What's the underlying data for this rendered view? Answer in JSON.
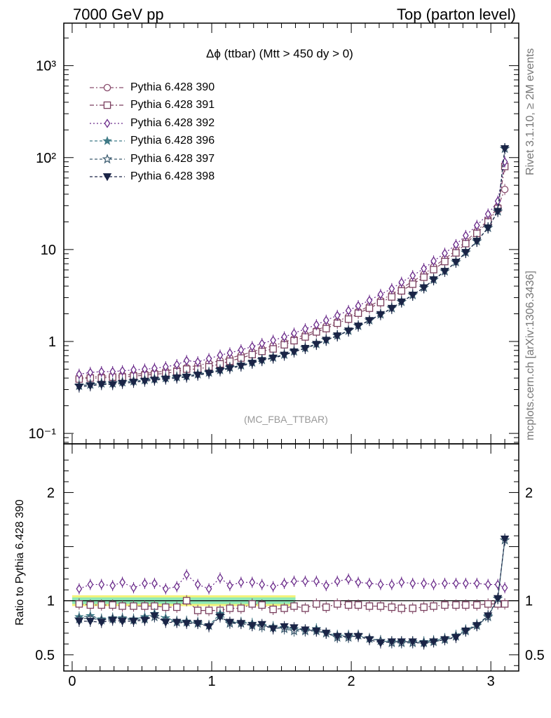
{
  "header": {
    "left": "7000 GeV pp",
    "right": "Top (parton level)"
  },
  "side_labels": {
    "rivet": "Rivet 3.1.10, ≥ 2M events",
    "mcplots": "mcplots.cern.ch [arXiv:1306.3436]"
  },
  "plot_title": "Δϕ (ttbar) (Mtt > 450 dy > 0)",
  "analysis_tag": "(MC_FBA_TTBAR)",
  "ratio_ylabel": "Ratio to Pythia 6.428 390",
  "colors": {
    "s390": "#8a4e6e",
    "s391": "#7a3f5e",
    "s392": "#6a2a8a",
    "s396": "#3f7a86",
    "s397": "#3a5a6e",
    "s398": "#1a2446",
    "band_outer": "#f2f27a",
    "band_inner": "#8ee8b8"
  },
  "chart_data": [
    {
      "type": "line",
      "panel": "main",
      "yscale": "log",
      "xlim": [
        -0.06,
        3.2
      ],
      "ylim": [
        0.077,
        2900
      ],
      "y_tick_labels": [
        "10⁻¹",
        "1",
        "10",
        "10²",
        "10³"
      ],
      "y_tick_values": [
        0.1,
        1,
        10,
        100,
        1000
      ],
      "x": [
        0.05,
        0.13,
        0.21,
        0.29,
        0.36,
        0.44,
        0.52,
        0.59,
        0.67,
        0.75,
        0.82,
        0.9,
        0.98,
        1.06,
        1.13,
        1.21,
        1.29,
        1.36,
        1.44,
        1.52,
        1.59,
        1.67,
        1.75,
        1.82,
        1.9,
        1.98,
        2.05,
        2.13,
        2.21,
        2.29,
        2.36,
        2.44,
        2.52,
        2.59,
        2.67,
        2.75,
        2.82,
        2.9,
        2.98,
        3.05,
        3.1
      ],
      "series": [
        {
          "name": "Pythia 6.428 390",
          "marker": "circle",
          "dash": "6,3,2,3",
          "values": [
            0.4,
            0.41,
            0.42,
            0.42,
            0.43,
            0.44,
            0.45,
            0.46,
            0.48,
            0.5,
            0.52,
            0.55,
            0.58,
            0.62,
            0.66,
            0.71,
            0.77,
            0.83,
            0.9,
            0.98,
            1.07,
            1.19,
            1.32,
            1.47,
            1.65,
            1.87,
            2.12,
            2.43,
            2.8,
            3.25,
            3.8,
            4.5,
            5.35,
            6.5,
            7.9,
            9.8,
            12.3,
            15.8,
            21,
            29,
            45
          ]
        },
        {
          "name": "Pythia 6.428 391",
          "marker": "square",
          "dash": "6,3,2,3",
          "values": [
            0.39,
            0.4,
            0.4,
            0.41,
            0.41,
            0.42,
            0.43,
            0.44,
            0.45,
            0.47,
            0.5,
            0.5,
            0.53,
            0.57,
            0.61,
            0.66,
            0.72,
            0.78,
            0.83,
            0.92,
            1.02,
            1.12,
            1.27,
            1.38,
            1.58,
            1.75,
            2.03,
            2.3,
            2.65,
            3.05,
            3.55,
            4.2,
            5.0,
            6.05,
            7.4,
            9.2,
            11.6,
            15.0,
            20.0,
            28.0,
            80
          ]
        },
        {
          "name": "Pythia 6.428 392",
          "marker": "diamond",
          "dash": "2,3",
          "values": [
            0.44,
            0.46,
            0.47,
            0.47,
            0.48,
            0.49,
            0.5,
            0.51,
            0.53,
            0.56,
            0.62,
            0.6,
            0.65,
            0.71,
            0.75,
            0.81,
            0.88,
            0.95,
            1.03,
            1.12,
            1.23,
            1.37,
            1.52,
            1.7,
            1.92,
            2.17,
            2.45,
            2.8,
            3.25,
            3.75,
            4.4,
            5.2,
            6.2,
            7.5,
            9.1,
            11.3,
            14.2,
            18.3,
            24.3,
            33.6,
            90
          ]
        },
        {
          "name": "Pythia 6.428 396",
          "marker": "star",
          "dash": "4,3",
          "values": [
            0.33,
            0.34,
            0.35,
            0.35,
            0.36,
            0.37,
            0.38,
            0.39,
            0.4,
            0.41,
            0.42,
            0.44,
            0.46,
            0.49,
            0.52,
            0.55,
            0.59,
            0.63,
            0.67,
            0.72,
            0.78,
            0.85,
            0.94,
            1.04,
            1.16,
            1.31,
            1.48,
            1.7,
            1.97,
            2.3,
            2.7,
            3.2,
            3.85,
            4.7,
            5.8,
            7.3,
            9.3,
            12.3,
            17.2,
            26,
            125
          ]
        },
        {
          "name": "Pythia 6.428 397",
          "marker": "star-open",
          "dash": "4,3",
          "values": [
            0.33,
            0.34,
            0.35,
            0.35,
            0.36,
            0.37,
            0.38,
            0.39,
            0.4,
            0.41,
            0.42,
            0.44,
            0.46,
            0.49,
            0.52,
            0.55,
            0.59,
            0.63,
            0.67,
            0.72,
            0.78,
            0.85,
            0.94,
            1.04,
            1.16,
            1.31,
            1.48,
            1.7,
            1.97,
            2.3,
            2.7,
            3.2,
            3.85,
            4.7,
            5.8,
            7.3,
            9.3,
            12.3,
            17.2,
            26,
            125
          ]
        },
        {
          "name": "Pythia 6.428 398",
          "marker": "triangle-down",
          "dash": "4,3",
          "values": [
            0.32,
            0.33,
            0.34,
            0.34,
            0.35,
            0.36,
            0.37,
            0.38,
            0.39,
            0.4,
            0.41,
            0.43,
            0.45,
            0.48,
            0.51,
            0.54,
            0.58,
            0.62,
            0.66,
            0.71,
            0.77,
            0.84,
            0.93,
            1.03,
            1.15,
            1.3,
            1.47,
            1.69,
            1.96,
            2.29,
            2.69,
            3.19,
            3.84,
            4.69,
            5.79,
            7.29,
            9.29,
            12.3,
            17.2,
            26,
            125
          ]
        }
      ]
    },
    {
      "type": "line",
      "panel": "ratio",
      "ylabel": "Ratio to Pythia 6.428 390",
      "xlim": [
        -0.06,
        3.2
      ],
      "ylim": [
        0.35,
        2.45
      ],
      "x_tick_labels": [
        "0",
        "1",
        "2",
        "3"
      ],
      "y_tick_labels": [
        "0.5",
        "1",
        "2"
      ],
      "y_tick_values": [
        0.5,
        1,
        2
      ],
      "x": [
        0.05,
        0.13,
        0.21,
        0.29,
        0.36,
        0.44,
        0.52,
        0.59,
        0.67,
        0.75,
        0.82,
        0.9,
        0.98,
        1.06,
        1.13,
        1.21,
        1.29,
        1.36,
        1.44,
        1.52,
        1.59,
        1.67,
        1.75,
        1.82,
        1.9,
        1.98,
        2.05,
        2.13,
        2.21,
        2.29,
        2.36,
        2.44,
        2.52,
        2.59,
        2.67,
        2.75,
        2.82,
        2.9,
        2.98,
        3.05,
        3.1
      ],
      "band": {
        "inner": [
          0.97,
          1.03
        ],
        "outer": [
          0.95,
          1.05
        ],
        "x_range": [
          0.0,
          1.6
        ]
      },
      "series": [
        {
          "name": "Pythia 6.428 390",
          "marker": "circle",
          "dash": "",
          "values": [
            1,
            1,
            1,
            1,
            1,
            1,
            1,
            1,
            1,
            1,
            1,
            1,
            1,
            1,
            1,
            1,
            1,
            1,
            1,
            1,
            1,
            1,
            1,
            1,
            1,
            1,
            1,
            1,
            1,
            1,
            1,
            1,
            1,
            1,
            1,
            1,
            1,
            1,
            1,
            1,
            1
          ]
        },
        {
          "name": "Pythia 6.428 391",
          "marker": "square",
          "dash": "6,3,2,3",
          "values": [
            0.97,
            0.96,
            0.96,
            0.96,
            0.95,
            0.95,
            0.95,
            0.95,
            0.94,
            0.94,
            1.0,
            0.91,
            0.91,
            0.91,
            0.93,
            0.93,
            0.97,
            0.96,
            0.92,
            0.93,
            0.95,
            0.93,
            0.97,
            0.94,
            0.97,
            0.96,
            0.96,
            0.95,
            0.95,
            0.94,
            0.93,
            0.93,
            0.94,
            0.95,
            0.96,
            0.96,
            0.96,
            0.96,
            0.97,
            0.97,
            0.97
          ]
        },
        {
          "name": "Pythia 6.428 392",
          "marker": "diamond",
          "dash": "2,3",
          "values": [
            1.11,
            1.15,
            1.15,
            1.14,
            1.17,
            1.12,
            1.16,
            1.16,
            1.11,
            1.13,
            1.24,
            1.15,
            1.11,
            1.21,
            1.14,
            1.17,
            1.17,
            1.15,
            1.13,
            1.16,
            1.18,
            1.18,
            1.18,
            1.14,
            1.18,
            1.2,
            1.17,
            1.16,
            1.15,
            1.15,
            1.17,
            1.16,
            1.16,
            1.15,
            1.16,
            1.16,
            1.16,
            1.16,
            1.15,
            1.15,
            1.12
          ]
        },
        {
          "name": "Pythia 6.428 396",
          "marker": "star",
          "dash": "4,3",
          "values": [
            0.85,
            0.86,
            0.83,
            0.84,
            0.84,
            0.83,
            0.85,
            0.88,
            0.84,
            0.81,
            0.81,
            0.8,
            0.77,
            0.88,
            0.8,
            0.8,
            0.79,
            0.77,
            0.76,
            0.75,
            0.74,
            0.73,
            0.74,
            0.7,
            0.68,
            0.68,
            0.68,
            0.65,
            0.63,
            0.62,
            0.62,
            0.62,
            0.62,
            0.63,
            0.65,
            0.68,
            0.73,
            0.78,
            0.86,
            1.02,
            1.56
          ]
        },
        {
          "name": "Pythia 6.428 397",
          "marker": "star-open",
          "dash": "4,3",
          "values": [
            0.83,
            0.84,
            0.82,
            0.83,
            0.83,
            0.82,
            0.83,
            0.85,
            0.82,
            0.8,
            0.8,
            0.79,
            0.77,
            0.86,
            0.79,
            0.79,
            0.77,
            0.76,
            0.75,
            0.74,
            0.72,
            0.72,
            0.72,
            0.7,
            0.66,
            0.66,
            0.68,
            0.65,
            0.63,
            0.61,
            0.61,
            0.61,
            0.61,
            0.62,
            0.64,
            0.67,
            0.72,
            0.77,
            0.85,
            1.02,
            1.56
          ]
        },
        {
          "name": "Pythia 6.428 398",
          "marker": "triangle-down",
          "dash": "4,3",
          "values": [
            0.81,
            0.81,
            0.8,
            0.82,
            0.81,
            0.81,
            0.82,
            0.86,
            0.8,
            0.8,
            0.79,
            0.79,
            0.76,
            0.85,
            0.8,
            0.79,
            0.77,
            0.78,
            0.74,
            0.76,
            0.75,
            0.73,
            0.72,
            0.7,
            0.67,
            0.67,
            0.67,
            0.64,
            0.61,
            0.62,
            0.62,
            0.62,
            0.6,
            0.62,
            0.64,
            0.66,
            0.72,
            0.77,
            0.86,
            1.02,
            1.57
          ]
        }
      ]
    }
  ]
}
